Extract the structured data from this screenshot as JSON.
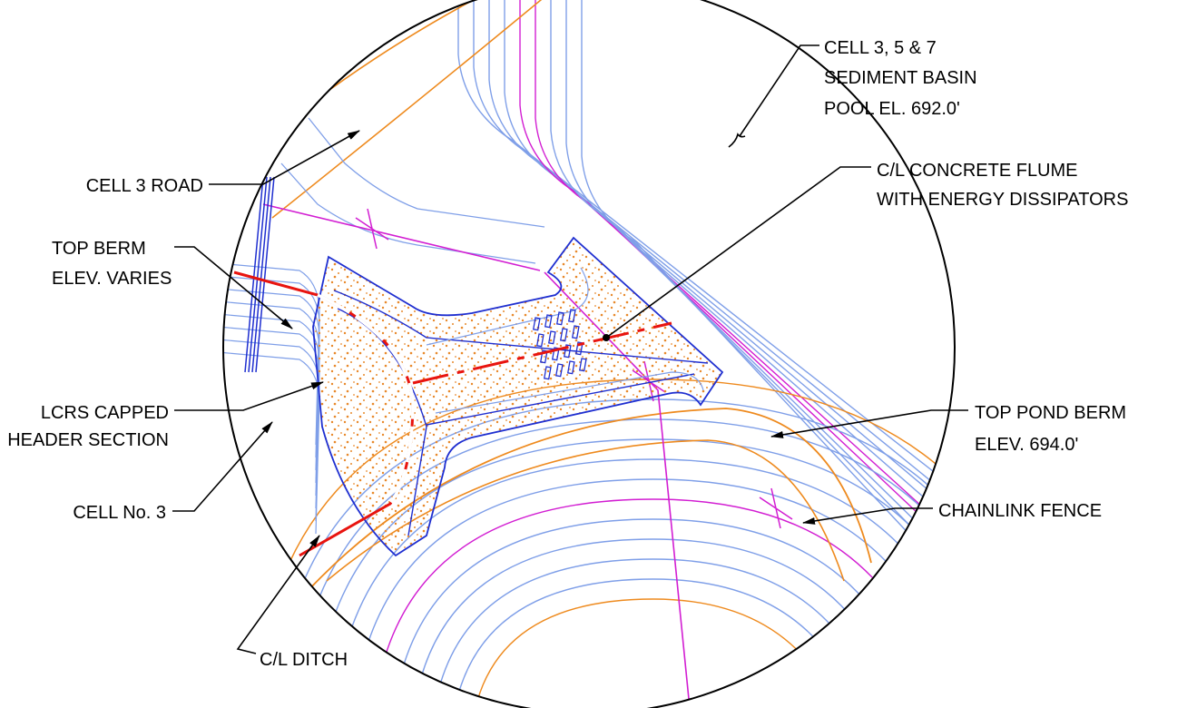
{
  "labels": [
    {
      "lines": [
        "CELL 3, 5 & 7",
        "SEDIMENT BASIN",
        "POOL EL. 692.0'"
      ]
    },
    {
      "lines": [
        "CELL 3 ROAD"
      ]
    },
    {
      "lines": [
        "C/L CONCRETE FLUME",
        "WITH ENERGY DISSIPATORS"
      ]
    },
    {
      "lines": [
        "TOP BERM",
        "ELEV. VARIES"
      ]
    },
    {
      "lines": [
        "LCRS CAPPED",
        "HEADER SECTION"
      ]
    },
    {
      "lines": [
        "TOP POND BERM",
        "ELEV. 694.0'"
      ]
    },
    {
      "lines": [
        "CELL No. 3"
      ]
    },
    {
      "lines": [
        "CHAINLINK FENCE"
      ]
    },
    {
      "lines": [
        "C/L DITCH"
      ]
    }
  ]
}
